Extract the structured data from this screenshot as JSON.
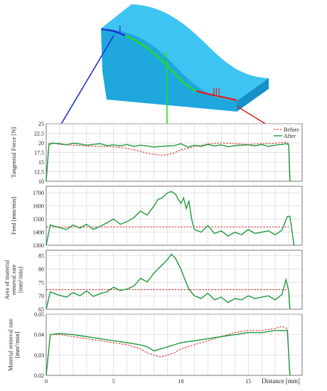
{
  "illustration": {
    "segment_labels": [
      "I",
      "II",
      "III"
    ],
    "colors": {
      "face_top": "#3ec4f2",
      "face_front": "#1fa7de",
      "face_side": "#1590c8",
      "seg1": "#2233cc",
      "seg2": "#22dd22",
      "seg3": "#dd2222"
    }
  },
  "legend": {
    "before": "Before",
    "after": "After"
  },
  "x_axis": {
    "label": "Distance [mm]",
    "range": [
      0,
      19
    ],
    "ticks": [
      0,
      5,
      10,
      15
    ]
  },
  "colors": {
    "before": "#dd2020",
    "after": "#1e9a3c",
    "grid": "#c8c8c8"
  },
  "chart_data": [
    {
      "type": "line",
      "ylabel": "Tangential Force [N]",
      "ylim": [
        10,
        25
      ],
      "yticks": [
        "10",
        "12.5",
        "15",
        "17.5",
        "20",
        "22.5",
        "25"
      ],
      "grid": true,
      "legend_position": "top-right",
      "series": [
        {
          "name": "Before",
          "style": "dashed",
          "x": [
            0,
            0.2,
            0.5,
            1,
            2,
            3,
            4,
            5,
            6,
            7,
            7.5,
            8,
            8.5,
            9,
            9.5,
            10,
            11,
            12,
            13,
            14,
            15,
            16,
            17,
            17.8,
            18,
            18.1
          ],
          "y": [
            11,
            19.8,
            20,
            19.6,
            19.4,
            19.2,
            19.1,
            19,
            18.6,
            17.8,
            17.3,
            17.0,
            16.8,
            16.9,
            17.4,
            18.2,
            19.0,
            19.7,
            20.0,
            19.8,
            19.6,
            19.8,
            19.9,
            20.2,
            19.8,
            11
          ]
        },
        {
          "name": "After",
          "style": "solid",
          "x": [
            0,
            0.2,
            0.5,
            1,
            1.5,
            2,
            2.5,
            3,
            3.5,
            4,
            4.5,
            5,
            5.5,
            6,
            6.5,
            7,
            7.5,
            8,
            8.5,
            9,
            9.5,
            10,
            10.5,
            11,
            11.5,
            12,
            12.5,
            13,
            13.5,
            14,
            14.5,
            15,
            15.5,
            16,
            16.5,
            17,
            17.5,
            17.8,
            18,
            18.1
          ],
          "y": [
            10,
            19.6,
            19.9,
            19.8,
            19.5,
            19.9,
            19.7,
            19.4,
            19.6,
            19.8,
            19.3,
            19.5,
            19.2,
            19.6,
            19.1,
            19.4,
            19.2,
            18.9,
            19.1,
            19.2,
            19.3,
            19.8,
            18.9,
            19.4,
            19.1,
            19.6,
            19.2,
            19.5,
            19.0,
            19.3,
            19.4,
            19.5,
            19.2,
            19.6,
            19.1,
            19.4,
            19.6,
            19.8,
            19.5,
            10
          ]
        }
      ]
    },
    {
      "type": "line",
      "ylabel": "Feed [mm/min]",
      "ylim": [
        1300,
        1750
      ],
      "yticks": [
        "1300",
        "1400",
        "1500",
        "1600",
        "1700"
      ],
      "grid": true,
      "series": [
        {
          "name": "Before",
          "style": "dashed",
          "x": [
            0,
            18
          ],
          "y": [
            1440,
            1440
          ]
        },
        {
          "name": "After",
          "style": "solid",
          "x": [
            0,
            0.3,
            0.8,
            1.5,
            2,
            2.5,
            3,
            3.5,
            4,
            4.5,
            5,
            5.5,
            6,
            6.5,
            7,
            7.5,
            8,
            8.3,
            8.6,
            9,
            9.3,
            9.6,
            9.8,
            10,
            10.2,
            10.4,
            10.6,
            10.8,
            11,
            11.5,
            12,
            12.5,
            13,
            13.5,
            14,
            14.5,
            15,
            15.5,
            16,
            16.5,
            17,
            17.5,
            17.9,
            18.1,
            18.4
          ],
          "y": [
            1300,
            1455,
            1440,
            1420,
            1455,
            1430,
            1460,
            1420,
            1445,
            1470,
            1500,
            1460,
            1480,
            1510,
            1560,
            1530,
            1600,
            1650,
            1660,
            1700,
            1710,
            1690,
            1650,
            1620,
            1660,
            1580,
            1640,
            1500,
            1420,
            1400,
            1450,
            1390,
            1410,
            1370,
            1400,
            1380,
            1420,
            1390,
            1400,
            1410,
            1380,
            1415,
            1520,
            1520,
            1300
          ]
        }
      ]
    },
    {
      "type": "line",
      "ylabel": "Area of material removal rate [mm²/min]",
      "ylabel_lines": [
        "Area of material",
        "removal rate",
        "[mm²/min]"
      ],
      "ylim": [
        65,
        87
      ],
      "yticks": [
        "65",
        "70",
        "75",
        "80",
        "85"
      ],
      "grid": true,
      "series": [
        {
          "name": "Before",
          "style": "dashed",
          "x": [
            0,
            18
          ],
          "y": [
            72.3,
            72.3
          ]
        },
        {
          "name": "After",
          "style": "solid",
          "x": [
            0,
            0.3,
            0.8,
            1.5,
            2,
            2.5,
            3,
            3.5,
            4,
            4.5,
            5,
            5.5,
            6,
            6.5,
            7,
            7.5,
            8,
            8.5,
            9,
            9.3,
            9.6,
            9.8,
            10,
            10.3,
            10.6,
            11,
            11.5,
            12,
            12.5,
            13,
            13.5,
            14,
            14.5,
            15,
            15.5,
            16,
            16.5,
            17,
            17.5,
            17.8,
            18,
            18.1
          ],
          "y": [
            65,
            71.5,
            70.5,
            69.5,
            71.2,
            70,
            71.8,
            69.8,
            70.8,
            71.5,
            73.2,
            72.0,
            72.5,
            73.6,
            76.5,
            75.2,
            78.5,
            81,
            83.5,
            85.5,
            84,
            82,
            80,
            76,
            72.5,
            70,
            69,
            71,
            68.5,
            69.5,
            67.5,
            69,
            68.5,
            70,
            69,
            69.5,
            70,
            68.5,
            70.5,
            76,
            72,
            65
          ]
        }
      ]
    },
    {
      "type": "line",
      "ylabel": "Material removal rate [mm³/min]",
      "ylabel_lines": [
        "Material removal rate",
        "[mm³/min]"
      ],
      "ylim": [
        0.02,
        0.05
      ],
      "yticks": [
        "0.02",
        "0.03",
        "0.04",
        "0.05"
      ],
      "grid": true,
      "series": [
        {
          "name": "Before",
          "style": "dashed",
          "x": [
            0,
            0.3,
            1,
            2,
            3,
            4,
            5,
            6,
            7,
            7.5,
            8,
            8.5,
            9,
            9.5,
            10,
            11,
            12,
            13,
            14,
            15,
            16,
            17,
            17.5,
            17.9,
            18.1
          ],
          "y": [
            0.02,
            0.04,
            0.04,
            0.039,
            0.038,
            0.037,
            0.036,
            0.035,
            0.033,
            0.031,
            0.03,
            0.029,
            0.03,
            0.031,
            0.033,
            0.035,
            0.037,
            0.039,
            0.041,
            0.042,
            0.042,
            0.043,
            0.044,
            0.043,
            0.02
          ]
        },
        {
          "name": "After",
          "style": "solid",
          "x": [
            0,
            0.3,
            1,
            2,
            3,
            4,
            5,
            6,
            7,
            7.5,
            8,
            8.5,
            9,
            9.5,
            10,
            11,
            12,
            13,
            14,
            15,
            16,
            17,
            17.5,
            17.9,
            18.1
          ],
          "y": [
            0.02,
            0.04,
            0.0405,
            0.04,
            0.039,
            0.038,
            0.037,
            0.036,
            0.035,
            0.034,
            0.032,
            0.033,
            0.034,
            0.035,
            0.036,
            0.037,
            0.038,
            0.039,
            0.04,
            0.041,
            0.041,
            0.042,
            0.042,
            0.042,
            0.02
          ]
        }
      ]
    }
  ]
}
